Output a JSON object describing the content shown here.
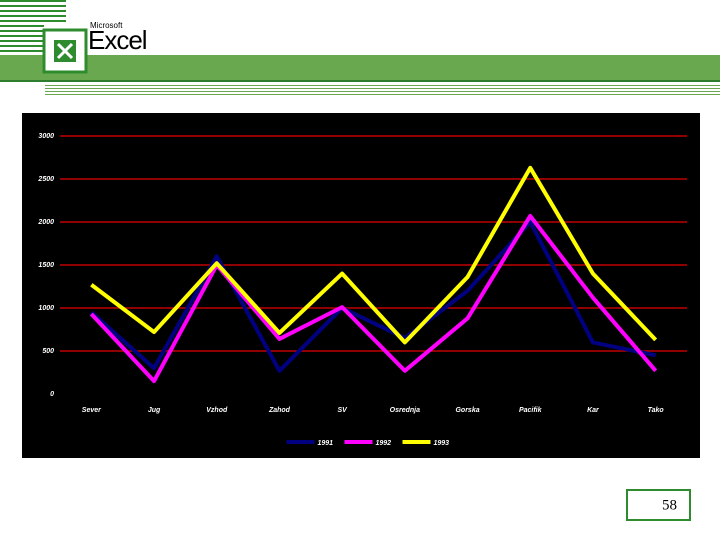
{
  "header": {
    "brand": "Microsoft",
    "product": "Excel"
  },
  "page_number": "58",
  "chart_data": {
    "type": "line",
    "categories": [
      "Sever",
      "Jug",
      "Vzhod",
      "Zahod",
      "SV",
      "Osrednja",
      "Gorska",
      "Pacifik",
      "Kar",
      "Tako"
    ],
    "series": [
      {
        "name": "1991",
        "color": "#000080",
        "values": [
          950,
          300,
          1600,
          270,
          1000,
          650,
          1200,
          2000,
          600,
          450
        ]
      },
      {
        "name": "1992",
        "color": "#ff00ff",
        "values": [
          930,
          150,
          1500,
          640,
          1010,
          270,
          880,
          2070,
          1120,
          270
        ]
      },
      {
        "name": "1993",
        "color": "#ffff00",
        "values": [
          1270,
          720,
          1520,
          710,
          1400,
          600,
          1360,
          2630,
          1400,
          630
        ]
      }
    ],
    "ylim": [
      0,
      3000
    ],
    "yticks": [
      0,
      500,
      1000,
      1500,
      2000,
      2500,
      3000
    ],
    "grid": true,
    "grid_color": "#c00000",
    "legend": "bottom"
  }
}
